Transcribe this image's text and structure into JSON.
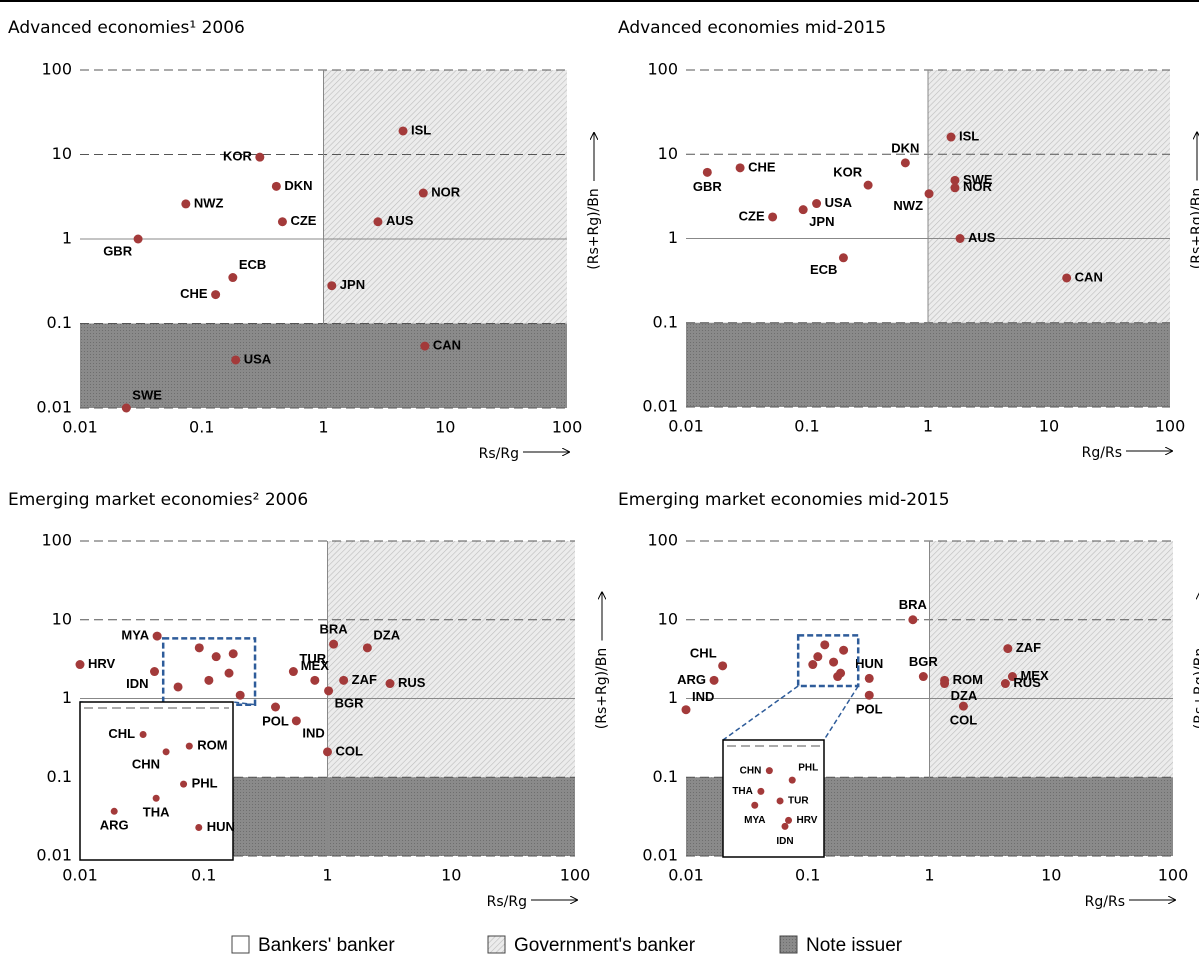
{
  "chart_data": [
    {
      "type": "scatter",
      "title": "Advanced economies¹ 2006",
      "x_label": "Rs/Rg",
      "y_label": "(Rs+Rg)/Bn",
      "log_x": true,
      "log_y": true,
      "xlim": [
        0.01,
        100
      ],
      "ylim": [
        0.01,
        100
      ],
      "xticks": [
        0.01,
        0.1,
        1,
        10,
        100
      ],
      "yticks": [
        0.01,
        0.1,
        1,
        10,
        100
      ],
      "color": "#a33a3a",
      "labels": [
        "ISL",
        "KOR",
        "DKN",
        "NOR",
        "NWZ",
        "CZE",
        "AUS",
        "GBR",
        "ECB",
        "CHE",
        "JPN",
        "CAN",
        "USA",
        "SWE"
      ],
      "x": [
        4.5,
        0.3,
        0.41,
        6.6,
        0.074,
        0.46,
        2.8,
        0.03,
        0.18,
        0.13,
        1.17,
        6.8,
        0.19,
        0.024
      ],
      "values": [
        19,
        9.3,
        4.2,
        3.5,
        2.6,
        1.6,
        1.6,
        1.0,
        0.35,
        0.22,
        0.28,
        0.054,
        0.037,
        0.01
      ]
    },
    {
      "type": "scatter",
      "title": "Advanced economies mid-2015",
      "x_label": "Rg/Rs",
      "y_label": "(Rs+Rg)/Bn",
      "log_x": true,
      "log_y": true,
      "xlim": [
        0.01,
        100
      ],
      "ylim": [
        0.01,
        100
      ],
      "xticks": [
        0.01,
        0.1,
        1,
        10,
        100
      ],
      "yticks": [
        0.01,
        0.1,
        1,
        10,
        100
      ],
      "color": "#a33a3a",
      "labels": [
        "ISL",
        "DKN",
        "CHE",
        "GBR",
        "KOR",
        "SWE",
        "NOR",
        "NWZ",
        "USA",
        "JPN",
        "CZE",
        "AUS",
        "ECB",
        "CAN"
      ],
      "x": [
        1.55,
        0.65,
        0.028,
        0.015,
        0.32,
        1.67,
        1.67,
        1.02,
        0.12,
        0.093,
        0.052,
        1.84,
        0.2,
        14
      ],
      "values": [
        16,
        7.9,
        6.9,
        6.1,
        4.3,
        4.9,
        4.0,
        3.4,
        2.6,
        2.2,
        1.8,
        1.0,
        0.59,
        0.34
      ]
    },
    {
      "type": "scatter",
      "title": "Emerging market economies² 2006",
      "x_label": "Rs/Rg",
      "y_label": "(Rs+Rg)/Bn",
      "log_x": true,
      "log_y": true,
      "xlim": [
        0.01,
        100
      ],
      "ylim": [
        0.01,
        100
      ],
      "xticks": [
        0.01,
        0.1,
        1,
        10,
        100
      ],
      "yticks": [
        0.01,
        0.1,
        1,
        10,
        100
      ],
      "color": "#a33a3a",
      "labels": [
        "MYA",
        "HRV",
        "IDN",
        "TUR",
        "BRA",
        "DZA",
        "MEX",
        "ZAF",
        "RUS",
        "BGR",
        "POL",
        "IND",
        "COL"
      ],
      "x": [
        0.042,
        0.01,
        0.04,
        0.53,
        1.12,
        2.1,
        0.79,
        1.35,
        3.2,
        1.02,
        0.38,
        0.56,
        1.0
      ],
      "values": [
        6.2,
        2.7,
        2.2,
        2.2,
        4.9,
        4.4,
        1.7,
        1.7,
        1.55,
        1.25,
        0.78,
        0.52,
        0.21
      ],
      "inset": {
        "labels": [
          "CHL",
          "CHN",
          "ROM",
          "PHL",
          "THA",
          "ARG",
          "HUN"
        ],
        "x": [
          0.092,
          0.126,
          0.173,
          0.16,
          0.11,
          0.062,
          0.197
        ],
        "values": [
          4.4,
          3.4,
          3.7,
          2.1,
          1.7,
          1.4,
          1.1
        ]
      }
    },
    {
      "type": "scatter",
      "title": "Emerging market economies mid-2015",
      "x_label": "Rg/Rs",
      "y_label": "(Rs+Rg)/Bn",
      "log_x": true,
      "log_y": true,
      "xlim": [
        0.01,
        100
      ],
      "ylim": [
        0.01,
        100
      ],
      "xticks": [
        0.01,
        0.1,
        1,
        10,
        100
      ],
      "yticks": [
        0.01,
        0.1,
        1,
        10,
        100
      ],
      "color": "#a33a3a",
      "labels": [
        "BRA",
        "CHL",
        "ARG",
        "IND",
        "HUN",
        "BGR",
        "POL",
        "ROM",
        "DZA",
        "COL",
        "ZAF",
        "MEX",
        "RUS"
      ],
      "x": [
        0.73,
        0.02,
        0.017,
        0.01,
        0.32,
        0.89,
        0.32,
        1.33,
        1.33,
        1.9,
        4.4,
        4.8,
        4.2
      ],
      "values": [
        10,
        2.6,
        1.7,
        0.72,
        1.8,
        1.9,
        1.1,
        1.7,
        1.55,
        0.8,
        4.3,
        1.9,
        1.55
      ],
      "inset": {
        "labels": [
          "CHN",
          "PHL",
          "THA",
          "TUR",
          "MYA",
          "HRV",
          "IDN"
        ],
        "x": [
          0.138,
          0.197,
          0.121,
          0.163,
          0.11,
          0.186,
          0.176
        ],
        "values": [
          4.8,
          4.1,
          3.4,
          2.9,
          2.7,
          2.1,
          1.9
        ]
      }
    }
  ],
  "legend": {
    "entries": [
      {
        "name": "Bankers' banker"
      },
      {
        "name": "Government's banker"
      },
      {
        "name": "Note issuer"
      }
    ]
  }
}
